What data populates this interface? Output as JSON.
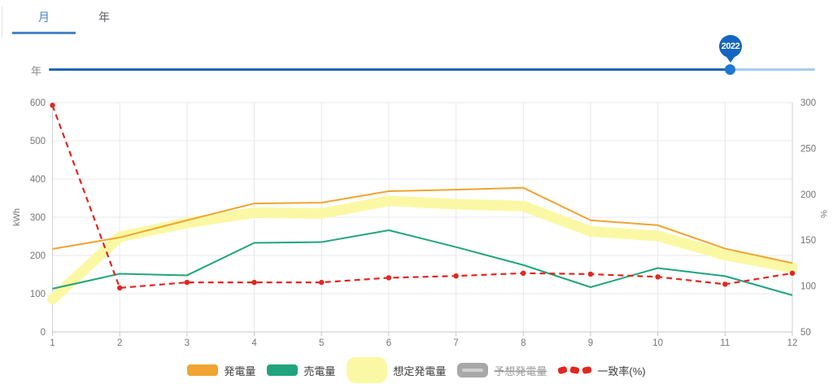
{
  "tabs": {
    "month_label": "月",
    "year_label": "年"
  },
  "slider": {
    "label": "年",
    "pin_value": "2022",
    "track_color": "#abcbea",
    "fill_color": "#1b66b7",
    "thumb_color": "#1f78d1",
    "pin_color": "#1565c0"
  },
  "chart_data": {
    "type": "line",
    "x": [
      "1",
      "2",
      "3",
      "4",
      "5",
      "6",
      "7",
      "8",
      "9",
      "10",
      "11",
      "12"
    ],
    "left_axis": {
      "title": "kWh",
      "min": 0,
      "max": 600,
      "ticks": [
        0,
        100,
        200,
        300,
        400,
        500,
        600
      ]
    },
    "right_axis": {
      "title": "%",
      "min": 50,
      "max": 300,
      "ticks": [
        50,
        100,
        150,
        200,
        250,
        300
      ]
    },
    "grid": true,
    "legend_position": "bottom",
    "series": [
      {
        "name": "発電量",
        "type": "line",
        "axis": "left",
        "color": "#f0a431",
        "values": [
          217,
          247,
          292,
          336,
          338,
          368,
          372,
          377,
          292,
          279,
          218,
          180
        ],
        "hidden": false
      },
      {
        "name": "売電量",
        "type": "line",
        "axis": "left",
        "color": "#21a47d",
        "values": [
          113,
          152,
          148,
          233,
          235,
          266,
          222,
          175,
          117,
          167,
          146,
          96
        ],
        "hidden": false
      },
      {
        "name": "想定発電量",
        "type": "band",
        "axis": "left",
        "color": "#fbf8a5",
        "values": [
          86,
          249,
          285,
          312,
          310,
          343,
          334,
          329,
          263,
          251,
          201,
          168
        ],
        "hidden": false
      },
      {
        "name": "予想発電量",
        "type": "line",
        "axis": "left",
        "color": "#a8a8a8",
        "values": [],
        "hidden": true
      },
      {
        "name": "一致率(%)",
        "type": "dashed",
        "axis": "right",
        "color": "#e3261f",
        "values": [
          297,
          98,
          104,
          104,
          104,
          109,
          111,
          114,
          113,
          110,
          102,
          114
        ],
        "hidden": false
      }
    ]
  }
}
